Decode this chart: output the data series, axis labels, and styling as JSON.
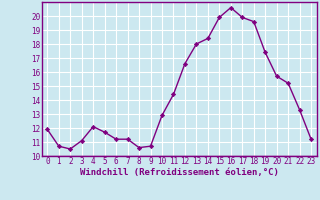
{
  "x": [
    0,
    1,
    2,
    3,
    4,
    5,
    6,
    7,
    8,
    9,
    10,
    11,
    12,
    13,
    14,
    15,
    16,
    17,
    18,
    19,
    20,
    21,
    22,
    23
  ],
  "y": [
    11.9,
    10.7,
    10.5,
    11.1,
    12.1,
    11.7,
    11.2,
    11.2,
    10.6,
    10.7,
    12.9,
    14.4,
    16.6,
    18.0,
    18.4,
    19.9,
    20.6,
    19.9,
    19.6,
    17.4,
    15.7,
    15.2,
    13.3,
    11.2
  ],
  "line_color": "#800080",
  "marker": "D",
  "marker_size": 2.2,
  "bg_color": "#cce8f0",
  "grid_color": "#ffffff",
  "xlabel": "Windchill (Refroidissement éolien,°C)",
  "xlabel_color": "#800080",
  "tick_color": "#800080",
  "spine_color": "#800080",
  "ylim": [
    10,
    21
  ],
  "xlim": [
    -0.5,
    23.5
  ],
  "yticks": [
    10,
    11,
    12,
    13,
    14,
    15,
    16,
    17,
    18,
    19,
    20
  ],
  "xticks": [
    0,
    1,
    2,
    3,
    4,
    5,
    6,
    7,
    8,
    9,
    10,
    11,
    12,
    13,
    14,
    15,
    16,
    17,
    18,
    19,
    20,
    21,
    22,
    23
  ],
  "line_width": 1.0,
  "tick_fontsize": 5.5,
  "xlabel_fontsize": 6.5
}
